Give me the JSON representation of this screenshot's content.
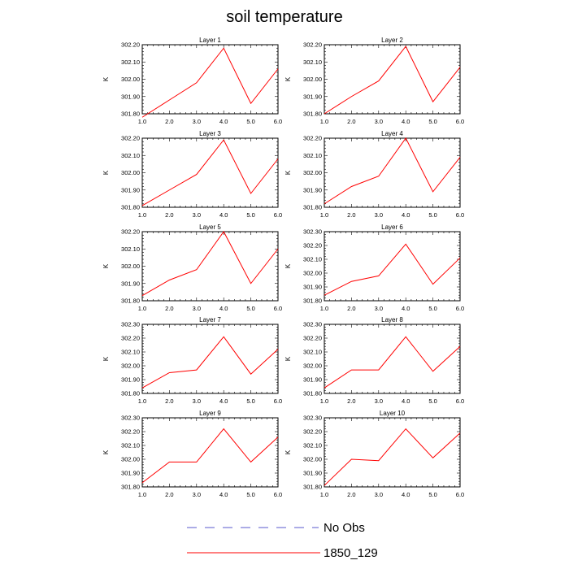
{
  "title": "soil temperature",
  "legend": {
    "entries": [
      {
        "label": "No Obs",
        "color": "#5a5acc",
        "dashed": true
      },
      {
        "label": "1850_129",
        "color": "#ff0000",
        "dashed": false
      }
    ]
  },
  "chart_data": [
    {
      "type": "line",
      "title": "Layer 1",
      "ylabel": "K",
      "x": [
        1,
        2,
        3,
        4,
        5,
        6
      ],
      "xlim": [
        1,
        6
      ],
      "xticks": [
        "1.0",
        "2.0",
        "3.0",
        "4.0",
        "5.0",
        "6.0"
      ],
      "ylim": [
        301.8,
        302.2
      ],
      "yticks": [
        "301.80",
        "301.90",
        "302.00",
        "302.10",
        "302.20"
      ],
      "series": [
        {
          "name": "1850_129",
          "values": [
            301.78,
            301.88,
            301.98,
            302.18,
            301.86,
            302.06
          ]
        }
      ]
    },
    {
      "type": "line",
      "title": "Layer 2",
      "ylabel": "K",
      "x": [
        1,
        2,
        3,
        4,
        5,
        6
      ],
      "xlim": [
        1,
        6
      ],
      "xticks": [
        "1.0",
        "2.0",
        "3.0",
        "4.0",
        "5.0",
        "6.0"
      ],
      "ylim": [
        301.8,
        302.2
      ],
      "yticks": [
        "301.80",
        "301.90",
        "302.00",
        "302.10",
        "302.20"
      ],
      "series": [
        {
          "name": "1850_129",
          "values": [
            301.8,
            301.9,
            301.99,
            302.19,
            301.87,
            302.07
          ]
        }
      ]
    },
    {
      "type": "line",
      "title": "Layer 3",
      "ylabel": "K",
      "x": [
        1,
        2,
        3,
        4,
        5,
        6
      ],
      "xlim": [
        1,
        6
      ],
      "xticks": [
        "1.0",
        "2.0",
        "3.0",
        "4.0",
        "5.0",
        "6.0"
      ],
      "ylim": [
        301.8,
        302.2
      ],
      "yticks": [
        "301.80",
        "301.90",
        "302.00",
        "302.10",
        "302.20"
      ],
      "series": [
        {
          "name": "1850_129",
          "values": [
            301.81,
            301.9,
            301.99,
            302.19,
            301.88,
            302.08
          ]
        }
      ]
    },
    {
      "type": "line",
      "title": "Layer 4",
      "ylabel": "K",
      "x": [
        1,
        2,
        3,
        4,
        5,
        6
      ],
      "xlim": [
        1,
        6
      ],
      "xticks": [
        "1.0",
        "2.0",
        "3.0",
        "4.0",
        "5.0",
        "6.0"
      ],
      "ylim": [
        301.8,
        302.2
      ],
      "yticks": [
        "301.80",
        "301.90",
        "302.00",
        "302.10",
        "302.20"
      ],
      "series": [
        {
          "name": "1850_129",
          "values": [
            301.82,
            301.92,
            301.98,
            302.2,
            301.89,
            302.09
          ]
        }
      ]
    },
    {
      "type": "line",
      "title": "Layer 5",
      "ylabel": "K",
      "x": [
        1,
        2,
        3,
        4,
        5,
        6
      ],
      "xlim": [
        1,
        6
      ],
      "xticks": [
        "1.0",
        "2.0",
        "3.0",
        "4.0",
        "5.0",
        "6.0"
      ],
      "ylim": [
        301.8,
        302.2
      ],
      "yticks": [
        "301.80",
        "301.90",
        "302.00",
        "302.10",
        "302.20"
      ],
      "series": [
        {
          "name": "1850_129",
          "values": [
            301.83,
            301.92,
            301.98,
            302.2,
            301.9,
            302.1
          ]
        }
      ]
    },
    {
      "type": "line",
      "title": "Layer 6",
      "ylabel": "K",
      "x": [
        1,
        2,
        3,
        4,
        5,
        6
      ],
      "xlim": [
        1,
        6
      ],
      "xticks": [
        "1.0",
        "2.0",
        "3.0",
        "4.0",
        "5.0",
        "6.0"
      ],
      "ylim": [
        301.8,
        302.3
      ],
      "yticks": [
        "301.80",
        "301.90",
        "302.00",
        "302.10",
        "302.20",
        "302.30"
      ],
      "series": [
        {
          "name": "1850_129",
          "values": [
            301.84,
            301.94,
            301.98,
            302.21,
            301.92,
            302.11
          ]
        }
      ]
    },
    {
      "type": "line",
      "title": "Layer 7",
      "ylabel": "K",
      "x": [
        1,
        2,
        3,
        4,
        5,
        6
      ],
      "xlim": [
        1,
        6
      ],
      "xticks": [
        "1.0",
        "2.0",
        "3.0",
        "4.0",
        "5.0",
        "6.0"
      ],
      "ylim": [
        301.8,
        302.3
      ],
      "yticks": [
        "301.80",
        "301.90",
        "302.00",
        "302.10",
        "302.20",
        "302.30"
      ],
      "series": [
        {
          "name": "1850_129",
          "values": [
            301.84,
            301.95,
            301.97,
            302.21,
            301.94,
            302.12
          ]
        }
      ]
    },
    {
      "type": "line",
      "title": "Layer 8",
      "ylabel": "K",
      "x": [
        1,
        2,
        3,
        4,
        5,
        6
      ],
      "xlim": [
        1,
        6
      ],
      "xticks": [
        "1.0",
        "2.0",
        "3.0",
        "4.0",
        "5.0",
        "6.0"
      ],
      "ylim": [
        301.8,
        302.3
      ],
      "yticks": [
        "301.80",
        "301.90",
        "302.00",
        "302.10",
        "302.20",
        "302.30"
      ],
      "series": [
        {
          "name": "1850_129",
          "values": [
            301.84,
            301.97,
            301.97,
            302.21,
            301.96,
            302.14
          ]
        }
      ]
    },
    {
      "type": "line",
      "title": "Layer 9",
      "ylabel": "K",
      "x": [
        1,
        2,
        3,
        4,
        5,
        6
      ],
      "xlim": [
        1,
        6
      ],
      "xticks": [
        "1.0",
        "2.0",
        "3.0",
        "4.0",
        "5.0",
        "6.0"
      ],
      "ylim": [
        301.8,
        302.3
      ],
      "yticks": [
        "301.80",
        "301.90",
        "302.00",
        "302.10",
        "302.20",
        "302.30"
      ],
      "series": [
        {
          "name": "1850_129",
          "values": [
            301.83,
            301.98,
            301.98,
            302.22,
            301.98,
            302.16
          ]
        }
      ]
    },
    {
      "type": "line",
      "title": "Layer 10",
      "ylabel": "K",
      "x": [
        1,
        2,
        3,
        4,
        5,
        6
      ],
      "xlim": [
        1,
        6
      ],
      "xticks": [
        "1.0",
        "2.0",
        "3.0",
        "4.0",
        "5.0",
        "6.0"
      ],
      "ylim": [
        301.8,
        302.3
      ],
      "yticks": [
        "301.80",
        "301.90",
        "302.00",
        "302.10",
        "302.20",
        "302.30"
      ],
      "series": [
        {
          "name": "1850_129",
          "values": [
            301.81,
            302.0,
            301.99,
            302.22,
            302.01,
            302.19
          ]
        }
      ]
    }
  ]
}
